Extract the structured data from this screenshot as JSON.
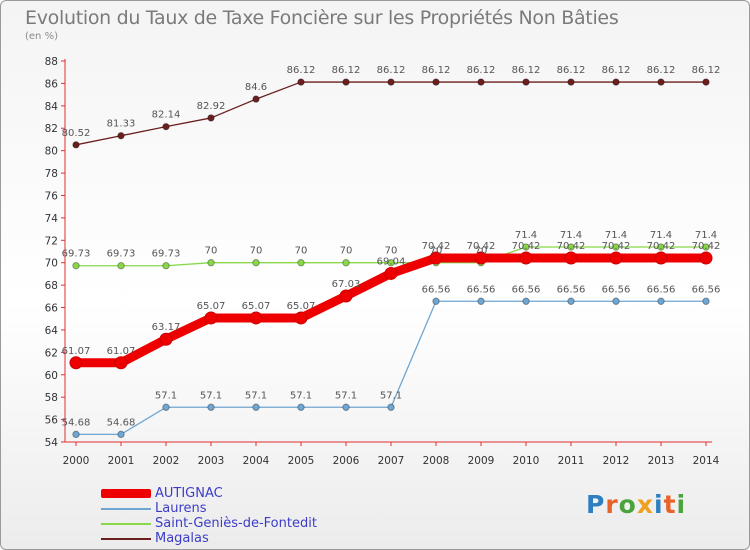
{
  "chart_data": {
    "type": "line",
    "title": "Evolution du Taux de Taxe Foncière sur les Propriétés Non Bâties",
    "ylabel": "(en %)",
    "xlabel": "",
    "ylim": [
      54,
      88
    ],
    "ytick_step": 2,
    "grid": false,
    "legend_position": "bottom-left",
    "categories": [
      "2000",
      "2001",
      "2002",
      "2003",
      "2004",
      "2005",
      "2006",
      "2007",
      "2008",
      "2009",
      "2010",
      "2011",
      "2012",
      "2013",
      "2014"
    ],
    "series": [
      {
        "name": "Magalas",
        "color": "#6b1f1f",
        "values": [
          80.52,
          81.33,
          82.14,
          82.92,
          84.6,
          86.12,
          86.12,
          86.12,
          86.12,
          86.12,
          86.12,
          86.12,
          86.12,
          86.12,
          86.12
        ],
        "labels": [
          "80.52",
          "81.33",
          "82.14",
          "82.92",
          "84.6",
          "86.12",
          "86.12",
          "86.12",
          "86.12",
          "86.12",
          "86.12",
          "86.12",
          "86.12",
          "86.12",
          "86.12"
        ]
      },
      {
        "name": "Saint-Geniès-de-Fontedit",
        "color": "#88d84a",
        "values": [
          69.73,
          69.73,
          69.73,
          70,
          70,
          70,
          70,
          70,
          70,
          70,
          71.4,
          71.4,
          71.4,
          71.4,
          71.4
        ],
        "labels": [
          "69.73",
          "69.73",
          "69.73",
          "70",
          "70",
          "70",
          "70",
          "70",
          "70",
          "70",
          "71.4",
          "71.4",
          "71.4",
          "71.4",
          "71.4"
        ]
      },
      {
        "name": "Laurens",
        "color": "#6fa6d2",
        "values": [
          54.68,
          54.68,
          57.1,
          57.1,
          57.1,
          57.1,
          57.1,
          57.1,
          66.56,
          66.56,
          66.56,
          66.56,
          66.56,
          66.56,
          66.56
        ],
        "labels": [
          "54.68",
          "54.68",
          "57.1",
          "57.1",
          "57.1",
          "57.1",
          "57.1",
          "57.1",
          "66.56",
          "66.56",
          "66.56",
          "66.56",
          "66.56",
          "66.56",
          "66.56"
        ]
      },
      {
        "name": "AUTIGNAC",
        "color": "#ee0000",
        "values": [
          61.07,
          61.07,
          63.17,
          65.07,
          65.07,
          65.07,
          67.03,
          69.04,
          70.42,
          70.42,
          70.42,
          70.42,
          70.42,
          70.42,
          70.42
        ],
        "labels": [
          "61.07",
          "61.07",
          "63.17",
          "65.07",
          "65.07",
          "65.07",
          "67.03",
          "69.04",
          "70.42",
          "70.42",
          "70.42",
          "70.42",
          "70.42",
          "70.42",
          "70.42"
        ]
      }
    ],
    "legend": [
      "AUTIGNAC",
      "Laurens",
      "Saint-Geniès-de-Fontedit",
      "Magalas"
    ]
  },
  "brand": {
    "text": "Proxiti",
    "colors": [
      "#2d7fc1",
      "#e8632c",
      "#4aa33c",
      "#f0a020",
      "#2d7fc1",
      "#e8632c",
      "#4aa33c"
    ]
  }
}
